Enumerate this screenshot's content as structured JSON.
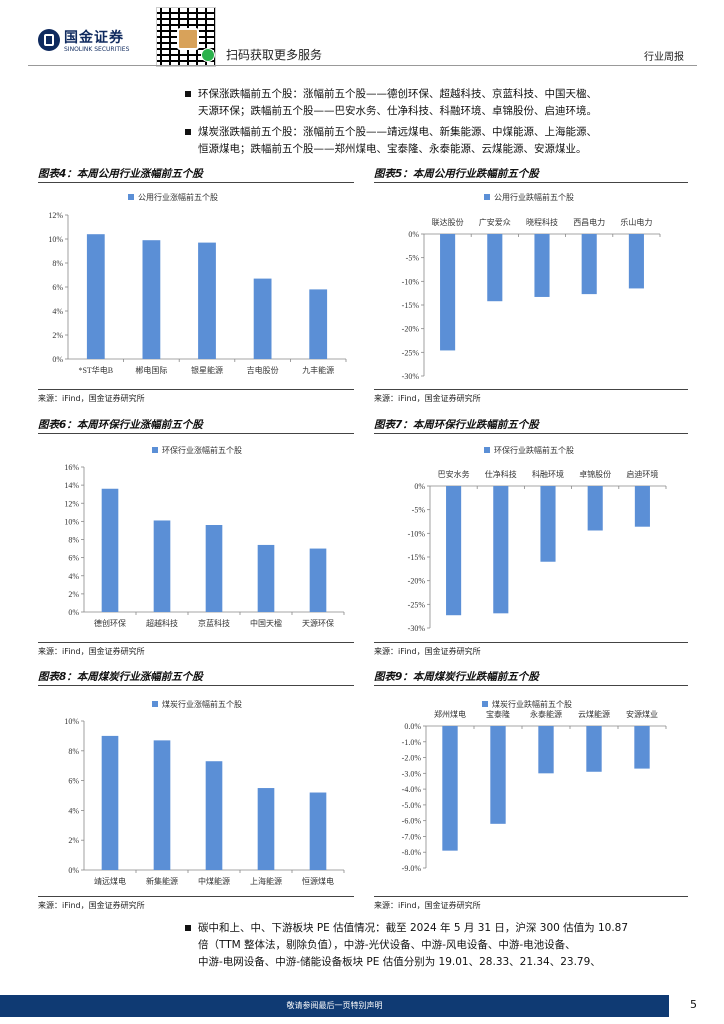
{
  "header": {
    "logo_cn": "国金证券",
    "logo_en": "SINOLINK SECURITIES",
    "scan_text": "扫码获取更多服务",
    "report_type": "行业周报"
  },
  "bullets": [
    {
      "lines": [
        "环保涨跌幅前五个股：涨幅前五个股——德创环保、超越科技、京蓝科技、中国天楹、",
        "天源环保；跌幅前五个股——巴安水务、仕净科技、科融环境、卓锦股份、启迪环境。"
      ]
    },
    {
      "lines": [
        "煤炭涨跌幅前五个股：涨幅前五个股——靖远煤电、新集能源、中煤能源、上海能源、",
        "恒源煤电；跌幅前五个股——郑州煤电、宝泰隆、永泰能源、云煤能源、安源煤业。"
      ]
    },
    {
      "lines": [
        "碳中和上、中、下游板块 PE 估值情况：截至 2024 年 5 月 31 日，沪深 300 估值为 10.87",
        "倍（TTM 整体法，剔除负值），中游-光伏设备、中游-风电设备、中游-电池设备、",
        "中游-电网设备、中游-储能设备板块 PE 估值分别为 19.01、28.33、21.34、23.79、"
      ]
    }
  ],
  "figures": [
    {
      "title": "图表4：本周公用行业涨幅前五个股",
      "source": "来源：iFind，国金证券研究所"
    },
    {
      "title": "图表5：本周公用行业跌幅前五个股",
      "source": "来源：iFind，国金证券研究所"
    },
    {
      "title": "图表6：本周环保行业涨幅前五个股",
      "source": "来源：iFind，国金证券研究所"
    },
    {
      "title": "图表7：本周环保行业跌幅前五个股",
      "source": "来源：iFind，国金证券研究所"
    },
    {
      "title": "图表8：本周煤炭行业涨幅前五个股",
      "source": "来源：iFind，国金证券研究所"
    },
    {
      "title": "图表9：本周煤炭行业跌幅前五个股",
      "source": "来源：iFind，国金证券研究所"
    }
  ],
  "chart_data": [
    {
      "type": "bar",
      "legend": "公用行业涨幅前五个股",
      "categories": [
        "*ST华电B",
        "郴电国际",
        "银星能源",
        "吉电股份",
        "九丰能源"
      ],
      "values": [
        10.4,
        9.9,
        9.7,
        6.7,
        5.8
      ],
      "ylim": [
        0,
        12
      ],
      "ticks": [
        0,
        2,
        4,
        6,
        8,
        10,
        12
      ],
      "decimals": 0,
      "grid": false,
      "color": "#5b8fd6"
    },
    {
      "type": "bar",
      "legend": "公用行业跌幅前五个股",
      "categories": [
        "联达股份",
        "广安爱众",
        "晓程科技",
        "西昌电力",
        "乐山电力"
      ],
      "values": [
        -24.6,
        -14.2,
        -13.3,
        -12.7,
        -11.5
      ],
      "ylim": [
        -30,
        0
      ],
      "ticks": [
        0,
        -5,
        -10,
        -15,
        -20,
        -25,
        -30
      ],
      "decimals": 0,
      "grid": false,
      "color": "#5b8fd6"
    },
    {
      "type": "bar",
      "legend": "环保行业涨幅前五个股",
      "categories": [
        "德创环保",
        "超越科技",
        "京蓝科技",
        "中国天楹",
        "天源环保"
      ],
      "values": [
        13.6,
        10.1,
        9.6,
        7.4,
        7.0
      ],
      "ylim": [
        0,
        16
      ],
      "ticks": [
        0,
        2,
        4,
        6,
        8,
        10,
        12,
        14,
        16
      ],
      "decimals": 0,
      "grid": false,
      "color": "#5b8fd6"
    },
    {
      "type": "bar",
      "legend": "环保行业跌幅前五个股",
      "categories": [
        "巴安水务",
        "仕净科技",
        "科融环境",
        "卓锦股份",
        "启迪环境"
      ],
      "values": [
        -27.3,
        -26.9,
        -16.0,
        -9.4,
        -8.6
      ],
      "ylim": [
        -30,
        0
      ],
      "ticks": [
        0,
        -5,
        -10,
        -15,
        -20,
        -25,
        -30
      ],
      "decimals": 0,
      "grid": false,
      "color": "#5b8fd6"
    },
    {
      "type": "bar",
      "legend": "煤炭行业涨幅前五个股",
      "categories": [
        "靖远煤电",
        "新集能源",
        "中煤能源",
        "上海能源",
        "恒源煤电"
      ],
      "values": [
        9.0,
        8.7,
        7.3,
        5.5,
        5.2
      ],
      "ylim": [
        0,
        10
      ],
      "ticks": [
        0,
        2,
        4,
        6,
        8,
        10
      ],
      "decimals": 0,
      "grid": false,
      "color": "#5b8fd6"
    },
    {
      "type": "bar",
      "legend": "煤炭行业跌幅前五个股",
      "categories": [
        "郑州煤电",
        "宝泰隆",
        "永泰能源",
        "云煤能源",
        "安源煤业"
      ],
      "values": [
        -7.9,
        -6.2,
        -3.0,
        -2.9,
        -2.7
      ],
      "ylim": [
        -9,
        0
      ],
      "ticks": [
        0,
        -1,
        -2,
        -3,
        -4,
        -5,
        -6,
        -7,
        -8,
        -9
      ],
      "decimals": 1,
      "grid": false,
      "color": "#5b8fd6"
    }
  ],
  "footer": {
    "disclaimer": "敬请参阅最后一页特别声明",
    "page": "5"
  }
}
